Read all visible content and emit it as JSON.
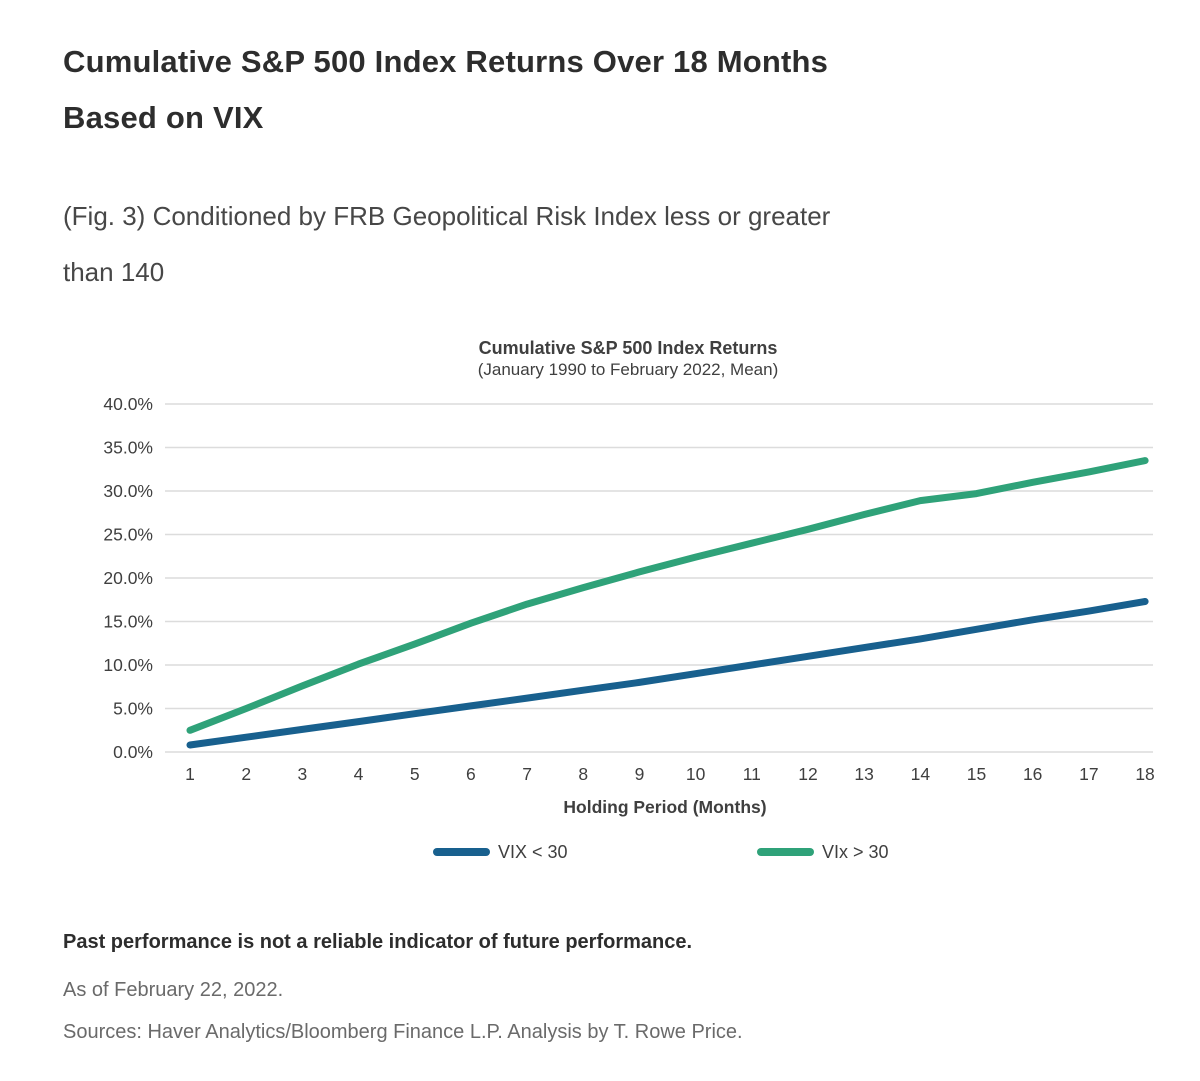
{
  "header": {
    "title_line1": "Cumulative S&P 500 Index Returns Over 18 Months",
    "title_line2": "Based on VIX",
    "caption_line1": "(Fig. 3) Conditioned by FRB Geopolitical Risk Index less or greater",
    "caption_line2": "than 140"
  },
  "chart_data": {
    "type": "line",
    "title": "Cumulative S&P 500 Index Returns",
    "subtitle": "(January 1990 to February 2022, Mean)",
    "xlabel": "Holding Period (Months)",
    "x": [
      1,
      2,
      3,
      4,
      5,
      6,
      7,
      8,
      9,
      10,
      11,
      12,
      13,
      14,
      15,
      16,
      17,
      18
    ],
    "series": [
      {
        "name": "VIX < 30",
        "color": "#18608e",
        "values": [
          0.8,
          1.7,
          2.6,
          3.5,
          4.4,
          5.3,
          6.2,
          7.1,
          8.0,
          9.0,
          10.0,
          11.0,
          12.0,
          13.0,
          14.1,
          15.2,
          16.2,
          17.3
        ]
      },
      {
        "name": "VIx > 30",
        "color": "#2fa279",
        "values": [
          2.5,
          5.0,
          7.6,
          10.1,
          12.4,
          14.8,
          17.0,
          18.9,
          20.7,
          22.4,
          24.0,
          25.6,
          27.3,
          28.9,
          29.7,
          31.0,
          32.2,
          33.5
        ]
      }
    ],
    "ylim": [
      0,
      40
    ],
    "ytick_step": 5,
    "ytick_labels": [
      "0.0%",
      "5.0%",
      "10.0%",
      "15.0%",
      "20.0%",
      "25.0%",
      "30.0%",
      "35.0%",
      "40.0%"
    ],
    "grid": "horizontal only",
    "legend_position": "bottom",
    "gridline_color": "#dcdcdc",
    "axis_text_color": "#3f3f3f"
  },
  "footer": {
    "disclaimer": "Past performance is not a reliable indicator of future performance.",
    "as_of": "As of February 22, 2022.",
    "sources": "Sources: Haver Analytics/Bloomberg Finance L.P. Analysis by T. Rowe Price."
  }
}
